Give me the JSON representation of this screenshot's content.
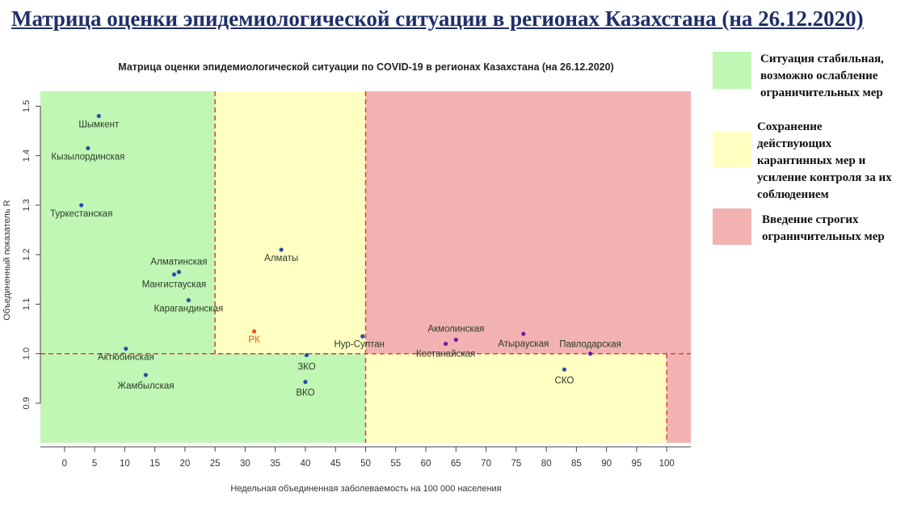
{
  "header": {
    "title": "Матрица оценки эпидемиологической ситуации в регионах Казахстана (на 26.12.2020)"
  },
  "legend": {
    "items": [
      {
        "lines": [
          "Ситуация стабильная,",
          "возможно ослабление",
          "ограничительных мер"
        ],
        "color": "#c1f7b4"
      },
      {
        "lines": [
          "Сохранение",
          "действующих",
          "карантинных мер и",
          "усиление контроля за их",
          "соблюдением"
        ],
        "color": "#ffffc2"
      },
      {
        "lines": [
          "Введение строгих",
          "ограничительных мер"
        ],
        "color": "#f2b2b2"
      }
    ]
  },
  "chart_data": {
    "type": "scatter",
    "title": "Матрица оценки эпидемиологической ситуации по COVID-19 в регионах Казахстана (на 26.12.2020)",
    "xlabel": "Недельная объединенная заболеваемость на 100 000 населения",
    "ylabel": "Объединенный показатель R",
    "xlim": [
      -4,
      104
    ],
    "ylim": [
      0.82,
      1.53
    ],
    "xticks": [
      0,
      5,
      10,
      15,
      20,
      25,
      30,
      35,
      40,
      45,
      50,
      55,
      60,
      65,
      70,
      75,
      80,
      85,
      90,
      95,
      100
    ],
    "yticks": [
      0.9,
      1.0,
      1.1,
      1.2,
      1.3,
      1.4,
      1.5
    ],
    "thresholds": {
      "x": [
        25,
        50,
        100
      ],
      "y": 1.0
    },
    "zone_colors": {
      "green": "#c1f7b4",
      "yellow": "#ffffc2",
      "red": "#f2b2b2",
      "threshold_line": "#d84040"
    },
    "points": [
      {
        "label": "Шымкент",
        "x": 5.7,
        "y": 1.48,
        "color": "#2b4fa8",
        "lx": 0,
        "ly": 14
      },
      {
        "label": "Кызылординская",
        "x": 3.9,
        "y": 1.415,
        "color": "#2b4fa8",
        "lx": 0,
        "ly": 14
      },
      {
        "label": "Туркестанская",
        "x": 2.8,
        "y": 1.3,
        "color": "#2b4fa8",
        "lx": 0,
        "ly": 14
      },
      {
        "label": "Алматы",
        "x": 36,
        "y": 1.21,
        "color": "#2b4fa8",
        "lx": 0,
        "ly": 14
      },
      {
        "label": "Алматинская",
        "x": 19,
        "y": 1.165,
        "color": "#2b4fa8",
        "lx": 0,
        "ly": -9
      },
      {
        "label": "Мангистауская",
        "x": 18.2,
        "y": 1.16,
        "color": "#2b4fa8",
        "lx": 0,
        "ly": 16
      },
      {
        "label": "Карагандинская",
        "x": 20.6,
        "y": 1.108,
        "color": "#2b4fa8",
        "lx": 0,
        "ly": 14
      },
      {
        "label": "РК",
        "x": 31.5,
        "y": 1.045,
        "color": "#e05a1a",
        "lx": 0,
        "ly": 14
      },
      {
        "label": "Нур-Султан",
        "x": 49.5,
        "y": 1.035,
        "color": "#2b4fa8",
        "lx": -4,
        "ly": 13
      },
      {
        "label": "Акмолинская",
        "x": 65,
        "y": 1.028,
        "color": "#6a1ea0",
        "lx": 0,
        "ly": -10
      },
      {
        "label": "Костанайская",
        "x": 63.3,
        "y": 1.02,
        "color": "#6a1ea0",
        "lx": 0,
        "ly": 16
      },
      {
        "label": "Атырауская",
        "x": 76.2,
        "y": 1.04,
        "color": "#6a1ea0",
        "lx": 0,
        "ly": 16
      },
      {
        "label": "Павлодарская",
        "x": 87.3,
        "y": 1.0,
        "color": "#6a1ea0",
        "lx": 0,
        "ly": -8
      },
      {
        "label": "Актюбинская",
        "x": 10.2,
        "y": 1.01,
        "color": "#2b4fa8",
        "lx": 0,
        "ly": 14
      },
      {
        "label": "ЗКО",
        "x": 40.2,
        "y": 0.997,
        "color": "#2b4fa8",
        "lx": 0,
        "ly": 18
      },
      {
        "label": "ВКО",
        "x": 40.0,
        "y": 0.943,
        "color": "#2b4fa8",
        "lx": 0,
        "ly": 17
      },
      {
        "label": "Жамбылская",
        "x": 13.5,
        "y": 0.957,
        "color": "#2b4fa8",
        "lx": 0,
        "ly": 17
      },
      {
        "label": "СКО",
        "x": 83,
        "y": 0.968,
        "color": "#2b4fa8",
        "lx": 0,
        "ly": 17
      }
    ]
  }
}
